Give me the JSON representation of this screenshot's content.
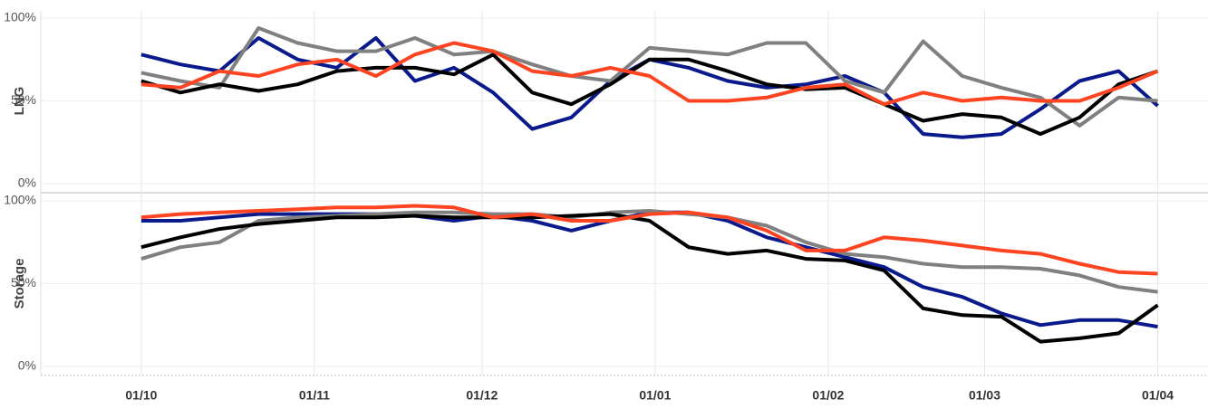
{
  "chart_data": [
    {
      "type": "line",
      "ylabel": "LNG",
      "ylim": [
        0,
        100
      ],
      "xlim": [
        -18,
        191
      ],
      "yticks": [
        {
          "value": 0,
          "label": "0%"
        },
        {
          "value": 50,
          "label": "50%"
        },
        {
          "value": 100,
          "label": "100%"
        }
      ],
      "grid": true,
      "x": [
        0,
        7,
        14,
        21,
        28,
        35,
        42,
        49,
        56,
        63,
        70,
        77,
        84,
        91,
        98,
        105,
        112,
        119,
        126,
        133,
        140,
        147,
        154,
        161,
        168,
        175,
        182
      ],
      "series": [
        {
          "color": "#0a1a8c",
          "values": [
            78,
            72,
            68,
            88,
            75,
            70,
            88,
            62,
            70,
            55,
            33,
            40,
            62,
            75,
            70,
            62,
            58,
            60,
            65,
            55,
            30,
            28,
            30,
            45,
            62,
            68,
            47
          ]
        },
        {
          "color": "#808080",
          "values": [
            67,
            62,
            58,
            94,
            85,
            80,
            80,
            88,
            78,
            80,
            72,
            65,
            62,
            82,
            80,
            78,
            85,
            85,
            62,
            55,
            86,
            65,
            58,
            52,
            35,
            52,
            50
          ]
        },
        {
          "color": "#000000",
          "values": [
            62,
            55,
            60,
            56,
            60,
            68,
            70,
            70,
            66,
            78,
            55,
            48,
            60,
            75,
            75,
            68,
            60,
            57,
            58,
            48,
            38,
            42,
            40,
            30,
            40,
            60,
            68
          ]
        },
        {
          "color": "#ff4422",
          "values": [
            60,
            58,
            68,
            65,
            72,
            75,
            65,
            78,
            85,
            80,
            68,
            65,
            70,
            65,
            50,
            50,
            52,
            58,
            60,
            48,
            55,
            50,
            52,
            50,
            50,
            58,
            68
          ]
        }
      ]
    },
    {
      "type": "line",
      "ylabel": "Storage",
      "ylim": [
        0,
        100
      ],
      "xlim": [
        -18,
        191
      ],
      "yticks": [
        {
          "value": 0,
          "label": "0%"
        },
        {
          "value": 50,
          "label": "50%"
        },
        {
          "value": 100,
          "label": "100%"
        }
      ],
      "grid": true,
      "xticks": [
        {
          "value": 0,
          "label": "01/10"
        },
        {
          "value": 31,
          "label": "01/11"
        },
        {
          "value": 61,
          "label": "01/12"
        },
        {
          "value": 92,
          "label": "01/01"
        },
        {
          "value": 123,
          "label": "01/02"
        },
        {
          "value": 151,
          "label": "01/03"
        },
        {
          "value": 182,
          "label": "01/04"
        }
      ],
      "x": [
        0,
        7,
        14,
        21,
        28,
        35,
        42,
        49,
        56,
        63,
        70,
        77,
        84,
        91,
        98,
        105,
        112,
        119,
        126,
        133,
        140,
        147,
        154,
        161,
        168,
        175,
        182
      ],
      "series": [
        {
          "color": "#0a1a8c",
          "values": [
            88,
            88,
            90,
            92,
            92,
            92,
            92,
            91,
            88,
            91,
            88,
            82,
            88,
            93,
            93,
            88,
            78,
            72,
            66,
            60,
            48,
            42,
            32,
            25,
            28,
            28,
            24
          ]
        },
        {
          "color": "#808080",
          "values": [
            65,
            72,
            75,
            88,
            90,
            91,
            92,
            93,
            93,
            92,
            92,
            90,
            93,
            94,
            92,
            90,
            85,
            75,
            68,
            66,
            62,
            60,
            60,
            59,
            55,
            48,
            45
          ]
        },
        {
          "color": "#000000",
          "values": [
            72,
            78,
            83,
            86,
            88,
            90,
            90,
            91,
            90,
            90,
            90,
            91,
            92,
            88,
            72,
            68,
            70,
            65,
            64,
            58,
            35,
            31,
            30,
            15,
            17,
            20,
            37
          ]
        },
        {
          "color": "#ff4422",
          "values": [
            90,
            92,
            93,
            94,
            95,
            96,
            96,
            97,
            96,
            90,
            92,
            88,
            88,
            92,
            93,
            90,
            82,
            70,
            70,
            78,
            76,
            73,
            70,
            68,
            62,
            57,
            56
          ]
        }
      ]
    }
  ]
}
